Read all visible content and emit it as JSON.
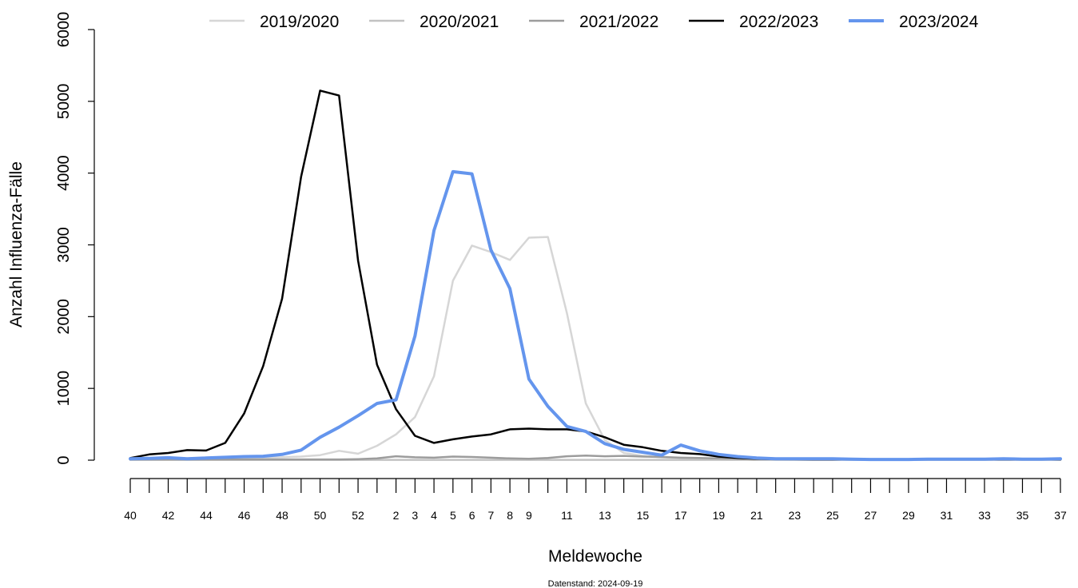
{
  "chart_data": {
    "type": "line",
    "xlabel": "Meldewoche",
    "ylabel": "Anzahl Influenza-Fälle",
    "footnote": "Datenstand: 2024-09-19",
    "ylim": [
      0,
      6000
    ],
    "yticks": [
      0,
      1000,
      2000,
      3000,
      4000,
      5000,
      6000
    ],
    "ytick_labels": [
      "0",
      "1000",
      "2000",
      "3000",
      "4000",
      "5000",
      "6000"
    ],
    "grid": false,
    "legend_position": "top",
    "weeks": [
      40,
      41,
      42,
      43,
      44,
      45,
      46,
      47,
      48,
      49,
      50,
      51,
      52,
      1,
      2,
      3,
      4,
      5,
      6,
      7,
      8,
      9,
      10,
      11,
      12,
      13,
      14,
      15,
      16,
      17,
      18,
      19,
      20,
      21,
      22,
      23,
      24,
      25,
      26,
      27,
      28,
      29,
      30,
      31,
      32,
      33,
      34,
      35,
      36,
      37
    ],
    "week_labels": [
      "40",
      "",
      "42",
      "",
      "44",
      "",
      "46",
      "",
      "48",
      "",
      "50",
      "",
      "52",
      "",
      "2",
      "3",
      "4",
      "5",
      "6",
      "7",
      "8",
      "9",
      "",
      "11",
      "",
      "13",
      "",
      "15",
      "",
      "17",
      "",
      "19",
      "",
      "21",
      "",
      "23",
      "",
      "25",
      "",
      "27",
      "",
      "29",
      "",
      "31",
      "",
      "33",
      "",
      "35",
      "",
      "37"
    ],
    "series": [
      {
        "name": "2019/2020",
        "color": "#d6d6d6",
        "width": 2.5,
        "values": [
          20,
          20,
          25,
          25,
          25,
          30,
          30,
          35,
          40,
          50,
          70,
          130,
          90,
          200,
          360,
          600,
          1170,
          2500,
          2990,
          2900,
          2790,
          3100,
          3110,
          2050,
          790,
          280,
          100,
          60,
          40,
          30,
          25,
          20,
          20,
          15,
          15,
          10,
          10,
          10,
          10,
          10,
          10,
          10,
          10,
          10,
          10,
          10,
          10,
          10,
          10,
          10
        ]
      },
      {
        "name": "2020/2021",
        "color": "#c2c2c2",
        "width": 2.5,
        "values": [
          5,
          5,
          5,
          5,
          5,
          5,
          5,
          5,
          5,
          5,
          5,
          5,
          5,
          5,
          5,
          5,
          5,
          5,
          5,
          5,
          5,
          5,
          5,
          5,
          5,
          5,
          5,
          5,
          5,
          5,
          5,
          5,
          5,
          5,
          5,
          5,
          5,
          5,
          5,
          5,
          5,
          5,
          5,
          5,
          5,
          5,
          5,
          5,
          5,
          5
        ]
      },
      {
        "name": "2021/2022",
        "color": "#9c9c9c",
        "width": 2.5,
        "values": [
          10,
          10,
          10,
          10,
          10,
          10,
          10,
          10,
          10,
          10,
          10,
          10,
          15,
          25,
          55,
          40,
          35,
          50,
          45,
          35,
          25,
          20,
          30,
          55,
          65,
          55,
          60,
          50,
          45,
          35,
          30,
          25,
          20,
          15,
          15,
          10,
          10,
          10,
          10,
          10,
          10,
          10,
          10,
          10,
          10,
          10,
          10,
          10,
          10,
          10
        ]
      },
      {
        "name": "2022/2023",
        "color": "#000000",
        "width": 2.5,
        "values": [
          30,
          80,
          100,
          140,
          135,
          240,
          650,
          1310,
          2250,
          3950,
          5150,
          5080,
          2780,
          1330,
          710,
          340,
          240,
          290,
          330,
          360,
          430,
          440,
          430,
          430,
          400,
          320,
          215,
          180,
          130,
          100,
          85,
          50,
          30,
          20,
          15,
          15,
          10,
          10,
          10,
          10,
          10,
          10,
          10,
          10,
          10,
          10,
          10,
          10,
          10,
          10
        ]
      },
      {
        "name": "2023/2024",
        "color": "#6495ed",
        "width": 4,
        "values": [
          20,
          25,
          35,
          20,
          30,
          40,
          50,
          55,
          80,
          140,
          320,
          460,
          620,
          790,
          840,
          1730,
          3200,
          4020,
          3990,
          2930,
          2390,
          1130,
          750,
          470,
          400,
          230,
          150,
          110,
          70,
          210,
          130,
          80,
          50,
          30,
          20,
          20,
          20,
          20,
          15,
          10,
          10,
          10,
          15,
          15,
          15,
          15,
          20,
          15,
          15,
          20
        ]
      }
    ]
  }
}
